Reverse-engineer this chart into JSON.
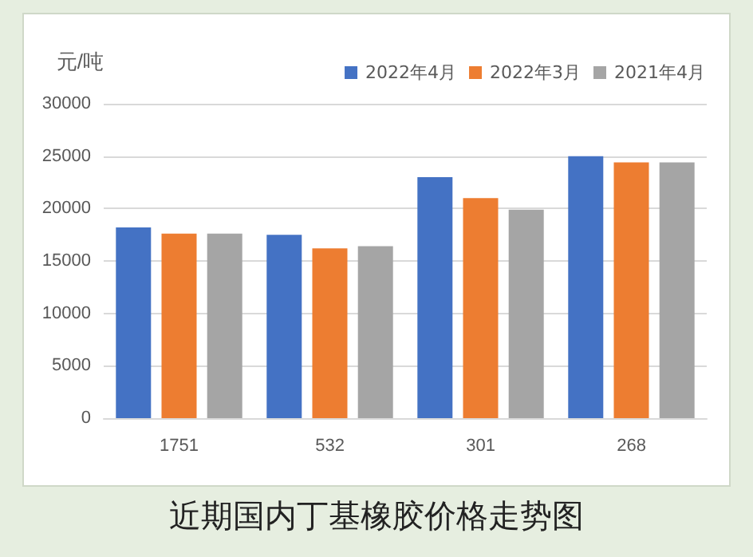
{
  "chart_data": {
    "type": "bar",
    "title": "近期国内丁基橡胶价格走势图",
    "ylabel": "元/吨",
    "categories": [
      "1751",
      "532",
      "301",
      "268"
    ],
    "series": [
      {
        "name": "2022年4月",
        "color": "#4472c4",
        "values": [
          18200,
          17500,
          23000,
          25000
        ]
      },
      {
        "name": "2022年3月",
        "color": "#ed7d31",
        "values": [
          17600,
          16200,
          21000,
          24400
        ]
      },
      {
        "name": "2021年4月",
        "color": "#a5a5a5",
        "values": [
          17600,
          16400,
          19900,
          24400
        ]
      }
    ],
    "ylim": [
      0,
      30000
    ],
    "yticks": [
      0,
      5000,
      10000,
      15000,
      20000,
      25000,
      30000
    ],
    "grid": "y",
    "legend": "top right"
  }
}
